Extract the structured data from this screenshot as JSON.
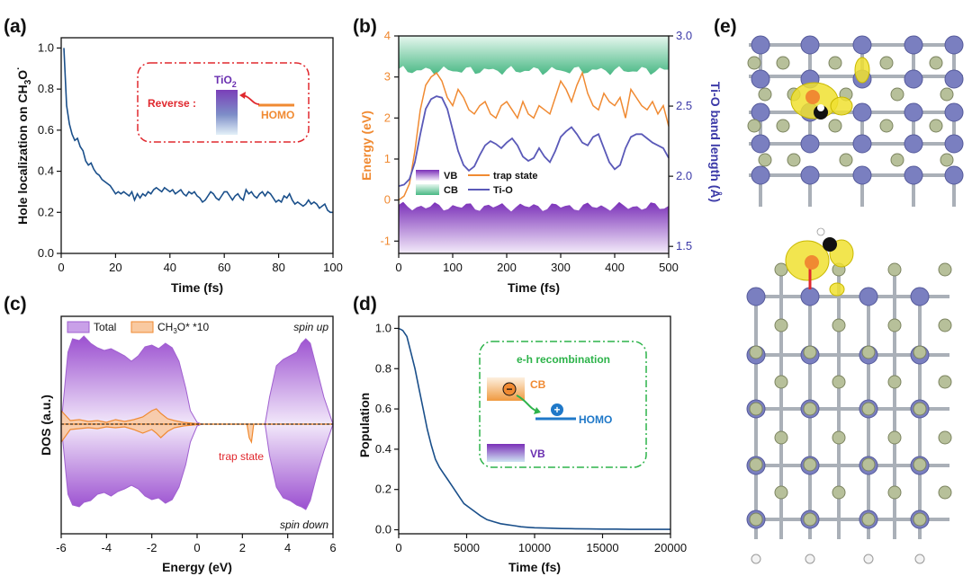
{
  "colors": {
    "hole_line": "#1a4f8a",
    "trap": "#f08a32",
    "tio": "#5a59b8",
    "vb": "#8a3fbf",
    "cb": "#59c28e",
    "dos_total": "#a060d0",
    "red": "#e0282e",
    "green": "#2db34a",
    "blue": "#1f78c8",
    "ti_atom": "#7a7fc0",
    "o_atom": "#b7c09a",
    "iso": "#f0e030"
  },
  "panels": {
    "a": {
      "label": "(a)"
    },
    "b": {
      "label": "(b)"
    },
    "c": {
      "label": "(c)"
    },
    "d": {
      "label": "(d)"
    },
    "e": {
      "label": "(e)"
    }
  },
  "inset_a": {
    "reverse": "Reverse :",
    "tio2": "TiO",
    "tio2_sub": "2",
    "homo": "HOMO"
  },
  "inset_d": {
    "title": "e-h recombination",
    "cb": "CB",
    "homo": "HOMO",
    "vb": "VB",
    "minus": "−",
    "plus": "+"
  },
  "chart_data": [
    {
      "panel": "a",
      "type": "line",
      "xlabel": "Time (fs)",
      "ylabel_main": "Hole localization on CH",
      "ylabel_sub": "3",
      "ylabel_main2": "O",
      "ylabel_sup": "·",
      "xlim": [
        0,
        100
      ],
      "ylim": [
        0,
        1.05
      ],
      "xticks": [
        "0",
        "20",
        "40",
        "60",
        "80",
        "100"
      ],
      "yticks": [
        "0.0",
        "0.2",
        "0.4",
        "0.6",
        "0.8",
        "1.0"
      ],
      "x": [
        1,
        2,
        3,
        4,
        5,
        6,
        7,
        8,
        9,
        10,
        11,
        12,
        13,
        14,
        15,
        16,
        17,
        18,
        19,
        20,
        21,
        22,
        23,
        24,
        25,
        26,
        27,
        28,
        29,
        30,
        31,
        32,
        33,
        34,
        35,
        36,
        37,
        38,
        39,
        40,
        41,
        42,
        43,
        44,
        45,
        46,
        47,
        48,
        49,
        50,
        51,
        52,
        53,
        54,
        55,
        56,
        57,
        58,
        59,
        60,
        61,
        62,
        63,
        64,
        65,
        66,
        67,
        68,
        69,
        70,
        71,
        72,
        73,
        74,
        75,
        76,
        77,
        78,
        79,
        80,
        81,
        82,
        83,
        84,
        85,
        86,
        87,
        88,
        89,
        90,
        91,
        92,
        93,
        94,
        95,
        96,
        97,
        98,
        99,
        100
      ],
      "y": [
        1.0,
        0.72,
        0.63,
        0.58,
        0.55,
        0.56,
        0.52,
        0.5,
        0.45,
        0.43,
        0.44,
        0.41,
        0.39,
        0.38,
        0.36,
        0.35,
        0.34,
        0.33,
        0.31,
        0.29,
        0.3,
        0.29,
        0.3,
        0.29,
        0.28,
        0.3,
        0.26,
        0.29,
        0.27,
        0.29,
        0.28,
        0.3,
        0.29,
        0.31,
        0.32,
        0.31,
        0.3,
        0.32,
        0.31,
        0.3,
        0.31,
        0.29,
        0.3,
        0.31,
        0.29,
        0.28,
        0.3,
        0.29,
        0.3,
        0.28,
        0.27,
        0.25,
        0.26,
        0.28,
        0.3,
        0.29,
        0.27,
        0.26,
        0.28,
        0.3,
        0.3,
        0.28,
        0.26,
        0.28,
        0.29,
        0.27,
        0.26,
        0.31,
        0.29,
        0.3,
        0.28,
        0.27,
        0.29,
        0.3,
        0.28,
        0.3,
        0.29,
        0.27,
        0.25,
        0.26,
        0.25,
        0.28,
        0.27,
        0.29,
        0.26,
        0.24,
        0.25,
        0.24,
        0.23,
        0.24,
        0.26,
        0.24,
        0.25,
        0.24,
        0.22,
        0.23,
        0.24,
        0.21,
        0.2,
        0.2
      ]
    },
    {
      "panel": "b",
      "type": "line",
      "xlabel": "Time (fs)",
      "ylabel_left": "Energy (eV)",
      "ylabel_right": "Ti-O band length (Å)",
      "xlim": [
        0,
        500
      ],
      "ylim_left": [
        -1.3,
        4
      ],
      "ylim_right": [
        1.45,
        3.0
      ],
      "xticks": [
        "0",
        "100",
        "200",
        "300",
        "400",
        "500"
      ],
      "yticks_left": [
        "-1",
        "0",
        "1",
        "2",
        "3",
        "4"
      ],
      "yticks_right": [
        "1.5",
        "2.0",
        "2.5",
        "3.0"
      ],
      "legend": [
        "VB",
        "trap state",
        "CB",
        "Ti-O"
      ],
      "series": [
        {
          "name": "trap state",
          "axis": "left",
          "x": [
            0,
            10,
            20,
            30,
            40,
            50,
            60,
            70,
            80,
            90,
            100,
            110,
            120,
            130,
            140,
            150,
            160,
            170,
            180,
            190,
            200,
            210,
            220,
            230,
            240,
            250,
            260,
            270,
            280,
            290,
            300,
            310,
            320,
            330,
            340,
            350,
            360,
            370,
            380,
            390,
            400,
            410,
            420,
            430,
            440,
            450,
            460,
            470,
            480,
            490,
            500
          ],
          "y": [
            0,
            0.1,
            0.4,
            1.2,
            2.2,
            2.8,
            3.0,
            3.1,
            2.9,
            2.5,
            2.3,
            2.7,
            2.5,
            2.2,
            2.1,
            2.3,
            2.4,
            2.1,
            2.0,
            2.3,
            2.4,
            2.2,
            2.0,
            2.4,
            2.1,
            2.0,
            2.3,
            2.2,
            2.1,
            2.5,
            2.9,
            2.7,
            2.4,
            2.8,
            3.1,
            2.6,
            2.3,
            2.2,
            2.6,
            2.4,
            2.3,
            2.5,
            2.0,
            2.7,
            2.5,
            2.3,
            2.2,
            2.4,
            2.1,
            2.3,
            1.8
          ]
        },
        {
          "name": "Ti-O",
          "axis": "right",
          "x": [
            0,
            10,
            20,
            30,
            40,
            50,
            60,
            70,
            80,
            90,
            100,
            110,
            120,
            130,
            140,
            150,
            160,
            170,
            180,
            190,
            200,
            210,
            220,
            230,
            240,
            250,
            260,
            270,
            280,
            290,
            300,
            310,
            320,
            330,
            340,
            350,
            360,
            370,
            380,
            390,
            400,
            410,
            420,
            430,
            440,
            450,
            460,
            470,
            480,
            490,
            500
          ],
          "y": [
            1.93,
            1.94,
            1.98,
            2.1,
            2.3,
            2.48,
            2.55,
            2.57,
            2.56,
            2.48,
            2.33,
            2.18,
            2.08,
            2.04,
            2.07,
            2.15,
            2.22,
            2.25,
            2.23,
            2.2,
            2.24,
            2.27,
            2.22,
            2.14,
            2.11,
            2.13,
            2.2,
            2.14,
            2.1,
            2.18,
            2.28,
            2.32,
            2.35,
            2.3,
            2.24,
            2.22,
            2.28,
            2.3,
            2.2,
            2.1,
            2.05,
            2.08,
            2.2,
            2.28,
            2.3,
            2.3,
            2.27,
            2.24,
            2.22,
            2.2,
            2.13
          ]
        },
        {
          "name": "VB",
          "axis": "left",
          "range": [
            -1.3,
            -0.1
          ]
        },
        {
          "name": "CB",
          "axis": "left",
          "range": [
            3.1,
            4.0
          ]
        }
      ]
    },
    {
      "panel": "c",
      "type": "area",
      "xlabel": "Energy (eV)",
      "ylabel": "DOS (a.u.)",
      "xlim": [
        -6,
        6
      ],
      "xticks": [
        "-6",
        "-4",
        "-2",
        "0",
        "2",
        "4",
        "6"
      ],
      "legend": [
        "Total",
        "CH3O* *10"
      ],
      "legend_total": "Total",
      "legend_ch3o": "CH",
      "legend_ch3o_sub": "3",
      "legend_ch3o_rest": "O* *10",
      "annotations": {
        "spin_up": "spin up",
        "spin_down": "spin down",
        "trap": "trap state"
      },
      "series": [
        {
          "name": "Total",
          "x": [
            -6,
            -5.7,
            -5.5,
            -5.2,
            -5,
            -4.7,
            -4.4,
            -4.1,
            -3.8,
            -3.5,
            -3.2,
            -2.9,
            -2.6,
            -2.3,
            -2.0,
            -1.7,
            -1.4,
            -1.1,
            -0.8,
            -0.5,
            -0.3,
            0,
            0.2,
            3.0,
            3.2,
            3.5,
            3.8,
            4.1,
            4.4,
            4.6,
            4.8,
            5.0,
            5.3,
            5.6,
            6.0
          ],
          "up": [
            0,
            0.8,
            0.95,
            0.93,
            0.98,
            0.9,
            0.85,
            0.82,
            0.84,
            0.8,
            0.76,
            0.7,
            0.76,
            0.86,
            0.88,
            0.84,
            0.9,
            0.85,
            0.7,
            0.4,
            0.15,
            0.02,
            0,
            0,
            0.3,
            0.65,
            0.72,
            0.76,
            0.8,
            0.9,
            0.95,
            0.9,
            0.6,
            0.3,
            0
          ],
          "down": [
            0,
            0.78,
            0.9,
            0.92,
            0.87,
            0.85,
            0.78,
            0.76,
            0.8,
            0.75,
            0.72,
            0.68,
            0.72,
            0.8,
            0.84,
            0.82,
            0.88,
            0.84,
            0.7,
            0.45,
            0.2,
            0.02,
            0,
            0,
            0.35,
            0.7,
            0.82,
            0.85,
            0.9,
            0.92,
            0.95,
            0.85,
            0.55,
            0.3,
            0
          ]
        },
        {
          "name": "CH3O* *10",
          "x": [
            -6,
            -5.6,
            -5.2,
            -4.8,
            -4.4,
            -4.0,
            -3.6,
            -3.2,
            -2.8,
            -2.4,
            -2.0,
            -1.8,
            -1.6,
            -1.3,
            -1.0,
            -0.6,
            -0.2,
            0.2,
            2.2,
            2.3,
            2.4,
            2.5,
            6.0
          ],
          "up": [
            0.15,
            0.04,
            0.05,
            0.03,
            0.04,
            0.02,
            0.05,
            0.03,
            0.05,
            0.08,
            0.15,
            0.17,
            0.12,
            0.06,
            0.04,
            0.02,
            0.01,
            0,
            0,
            0,
            0,
            0,
            0
          ],
          "down": [
            0.2,
            0.06,
            0.05,
            0.04,
            0.05,
            0.03,
            0.04,
            0.03,
            0.06,
            0.1,
            0.06,
            0.1,
            0.15,
            0.08,
            0.04,
            0.02,
            0.01,
            0,
            0,
            0.15,
            0.2,
            0,
            0
          ]
        }
      ]
    },
    {
      "panel": "d",
      "type": "line",
      "xlabel": "Time (fs)",
      "ylabel": "Population",
      "xlim": [
        0,
        20000
      ],
      "ylim": [
        -0.02,
        1.06
      ],
      "xticks": [
        "0",
        "5000",
        "10000",
        "15000",
        "20000"
      ],
      "yticks": [
        "0.0",
        "0.2",
        "0.4",
        "0.6",
        "0.8",
        "1.0"
      ],
      "x": [
        0,
        300,
        600,
        900,
        1200,
        1500,
        1800,
        2100,
        2400,
        2700,
        3000,
        3300,
        3600,
        3900,
        4200,
        4500,
        4800,
        5200,
        5600,
        6000,
        6500,
        7000,
        7500,
        8000,
        8500,
        9000,
        9500,
        10000,
        11000,
        12000,
        13000,
        14000,
        15000,
        16000,
        17000,
        18000,
        19000,
        20000
      ],
      "y": [
        1.0,
        0.99,
        0.96,
        0.88,
        0.8,
        0.7,
        0.6,
        0.5,
        0.42,
        0.35,
        0.31,
        0.28,
        0.25,
        0.22,
        0.19,
        0.16,
        0.13,
        0.11,
        0.09,
        0.07,
        0.05,
        0.04,
        0.03,
        0.025,
        0.02,
        0.015,
        0.012,
        0.01,
        0.008,
        0.006,
        0.005,
        0.004,
        0.003,
        0.003,
        0.002,
        0.002,
        0.002,
        0.002
      ]
    }
  ]
}
